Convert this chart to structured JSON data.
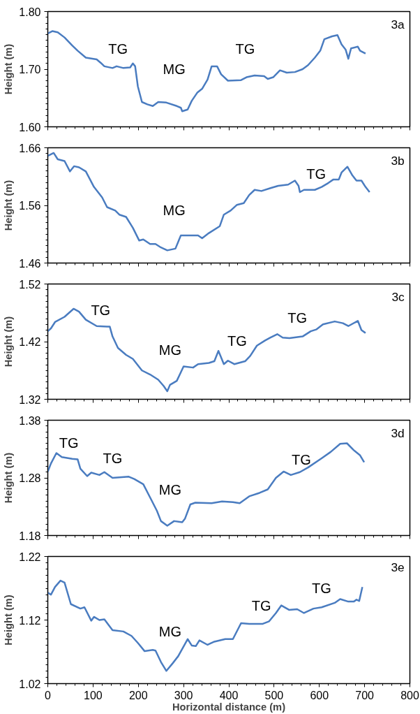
{
  "chart_data": [
    {
      "type": "line",
      "ylabel": "Height (m)",
      "xlim": [
        0,
        800
      ],
      "ylim": [
        1.6,
        1.8
      ],
      "yticks": [
        {
          "value": 1.6,
          "label": "1.60"
        },
        {
          "value": 1.7,
          "label": "1.70"
        },
        {
          "value": 1.8,
          "label": "1.80"
        }
      ],
      "tick_labels": "y",
      "grid": false,
      "annotations": [
        "3a",
        "TG",
        "MG",
        "TG"
      ],
      "series": [
        {
          "color": "#4a7cc0",
          "x": [
            0,
            10,
            22,
            37,
            54,
            66,
            84,
            108,
            117,
            125,
            143,
            152,
            167,
            182,
            188,
            193,
            199,
            208,
            220,
            232,
            244,
            262,
            285,
            294,
            297,
            309,
            318,
            330,
            341,
            353,
            362,
            374,
            383,
            398,
            427,
            439,
            457,
            478,
            486,
            498,
            513,
            528,
            546,
            563,
            575,
            590,
            602,
            611,
            628,
            640,
            649,
            658,
            664,
            670,
            685,
            690,
            702
          ],
          "values": [
            1.762,
            1.766,
            1.764,
            1.755,
            1.741,
            1.732,
            1.72,
            1.717,
            1.711,
            1.705,
            1.702,
            1.705,
            1.702,
            1.703,
            1.71,
            1.705,
            1.67,
            1.643,
            1.639,
            1.636,
            1.643,
            1.642,
            1.636,
            1.633,
            1.627,
            1.63,
            1.645,
            1.659,
            1.666,
            1.682,
            1.705,
            1.705,
            1.691,
            1.68,
            1.681,
            1.686,
            1.689,
            1.688,
            1.683,
            1.686,
            1.698,
            1.694,
            1.695,
            1.7,
            1.707,
            1.72,
            1.732,
            1.752,
            1.757,
            1.759,
            1.743,
            1.734,
            1.718,
            1.736,
            1.739,
            1.732,
            1.727
          ]
        }
      ]
    },
    {
      "type": "line",
      "ylabel": "Height (m)",
      "xlim": [
        0,
        800
      ],
      "ylim": [
        1.46,
        1.66
      ],
      "yticks": [
        1.46,
        1.56,
        1.66
      ],
      "tick_labels": "y",
      "grid": false,
      "annotations": [
        "3b",
        "MG",
        "TG"
      ],
      "series": [
        {
          "color": "#4a7cc0",
          "x": [
            0,
            13,
            22,
            37,
            49,
            58,
            69,
            84,
            102,
            120,
            131,
            149,
            158,
            173,
            188,
            202,
            211,
            226,
            238,
            250,
            264,
            282,
            294,
            309,
            332,
            341,
            356,
            380,
            389,
            404,
            418,
            433,
            445,
            457,
            472,
            492,
            509,
            531,
            546,
            554,
            557,
            566,
            590,
            605,
            620,
            631,
            643,
            649,
            662,
            673,
            682,
            693,
            702,
            711
          ],
          "values": [
            1.646,
            1.651,
            1.64,
            1.637,
            1.619,
            1.628,
            1.626,
            1.619,
            1.592,
            1.574,
            1.557,
            1.551,
            1.544,
            1.54,
            1.521,
            1.499,
            1.501,
            1.493,
            1.493,
            1.487,
            1.482,
            1.485,
            1.508,
            1.508,
            1.508,
            1.503,
            1.512,
            1.524,
            1.544,
            1.551,
            1.561,
            1.564,
            1.578,
            1.587,
            1.585,
            1.59,
            1.594,
            1.596,
            1.603,
            1.594,
            1.583,
            1.587,
            1.587,
            1.592,
            1.599,
            1.605,
            1.605,
            1.617,
            1.627,
            1.612,
            1.603,
            1.603,
            1.592,
            1.583
          ]
        }
      ]
    },
    {
      "type": "line",
      "ylabel": "Height (m)",
      "xlim": [
        0,
        800
      ],
      "ylim": [
        1.32,
        1.52
      ],
      "yticks": [
        1.32,
        1.42,
        1.52
      ],
      "tick_labels": "y",
      "grid": false,
      "annotations": [
        "3c",
        "TG",
        "MG",
        "TG",
        "TG"
      ],
      "series": [
        {
          "color": "#4a7cc0",
          "x": [
            0,
            7,
            16,
            37,
            57,
            69,
            84,
            108,
            131,
            137,
            143,
            155,
            173,
            188,
            208,
            226,
            244,
            256,
            264,
            270,
            285,
            300,
            321,
            332,
            356,
            368,
            377,
            389,
            398,
            412,
            436,
            447,
            462,
            480,
            492,
            507,
            519,
            534,
            563,
            581,
            593,
            608,
            634,
            652,
            664,
            685,
            693,
            702
          ],
          "values": [
            1.438,
            1.443,
            1.454,
            1.463,
            1.477,
            1.472,
            1.458,
            1.447,
            1.446,
            1.446,
            1.429,
            1.409,
            1.397,
            1.39,
            1.37,
            1.363,
            1.354,
            1.343,
            1.334,
            1.345,
            1.352,
            1.377,
            1.375,
            1.381,
            1.383,
            1.386,
            1.404,
            1.381,
            1.387,
            1.381,
            1.386,
            1.395,
            1.413,
            1.422,
            1.427,
            1.433,
            1.427,
            1.426,
            1.429,
            1.438,
            1.441,
            1.45,
            1.455,
            1.452,
            1.447,
            1.456,
            1.44,
            1.435
          ]
        }
      ]
    },
    {
      "type": "line",
      "ylabel": "Height (m)",
      "xlim": [
        0,
        800
      ],
      "ylim": [
        1.18,
        1.38
      ],
      "yticks": [
        1.18,
        1.28,
        1.38
      ],
      "tick_labels": "y",
      "grid": false,
      "annotations": [
        "3d",
        "TG",
        "TG",
        "MG",
        "TG"
      ],
      "series": [
        {
          "color": "#4a7cc0",
          "x": [
            0,
            7,
            19,
            31,
            54,
            66,
            72,
            87,
            96,
            114,
            125,
            143,
            179,
            191,
            211,
            226,
            241,
            250,
            264,
            279,
            297,
            303,
            315,
            326,
            362,
            385,
            409,
            424,
            445,
            468,
            486,
            504,
            521,
            537,
            557,
            575,
            605,
            625,
            646,
            661,
            676,
            690,
            699
          ],
          "values": [
            1.291,
            1.305,
            1.323,
            1.316,
            1.313,
            1.312,
            1.296,
            1.283,
            1.289,
            1.285,
            1.29,
            1.28,
            1.282,
            1.278,
            1.269,
            1.246,
            1.223,
            1.205,
            1.197,
            1.205,
            1.203,
            1.209,
            1.234,
            1.237,
            1.236,
            1.239,
            1.238,
            1.236,
            1.248,
            1.254,
            1.26,
            1.28,
            1.291,
            1.285,
            1.29,
            1.298,
            1.314,
            1.325,
            1.339,
            1.34,
            1.328,
            1.319,
            1.307
          ]
        }
      ]
    },
    {
      "type": "line",
      "ylabel": "Height (m)",
      "xlabel": "Horizontal distance (m)",
      "xlim": [
        0,
        800
      ],
      "xticks": [
        0,
        100,
        200,
        300,
        400,
        500,
        600,
        700,
        800
      ],
      "ylim": [
        1.02,
        1.22
      ],
      "yticks": [
        1.02,
        1.12,
        1.22
      ],
      "grid": false,
      "annotations": [
        "3e",
        "MG",
        "TG",
        "TG"
      ],
      "series": [
        {
          "color": "#4a7cc0",
          "x": [
            0,
            7,
            16,
            28,
            37,
            51,
            72,
            81,
            96,
            102,
            114,
            125,
            143,
            167,
            185,
            199,
            214,
            232,
            238,
            250,
            262,
            276,
            288,
            309,
            318,
            327,
            335,
            353,
            368,
            392,
            409,
            427,
            445,
            475,
            489,
            504,
            516,
            533,
            551,
            566,
            587,
            605,
            634,
            646,
            664,
            676,
            682,
            688,
            695
          ],
          "values": [
            1.163,
            1.16,
            1.172,
            1.182,
            1.179,
            1.145,
            1.138,
            1.14,
            1.119,
            1.125,
            1.12,
            1.121,
            1.104,
            1.102,
            1.095,
            1.084,
            1.071,
            1.073,
            1.072,
            1.054,
            1.04,
            1.052,
            1.063,
            1.09,
            1.08,
            1.079,
            1.088,
            1.081,
            1.086,
            1.09,
            1.09,
            1.115,
            1.114,
            1.114,
            1.118,
            1.131,
            1.143,
            1.136,
            1.137,
            1.131,
            1.138,
            1.14,
            1.147,
            1.153,
            1.149,
            1.149,
            1.152,
            1.15,
            1.172
          ]
        }
      ]
    }
  ]
}
